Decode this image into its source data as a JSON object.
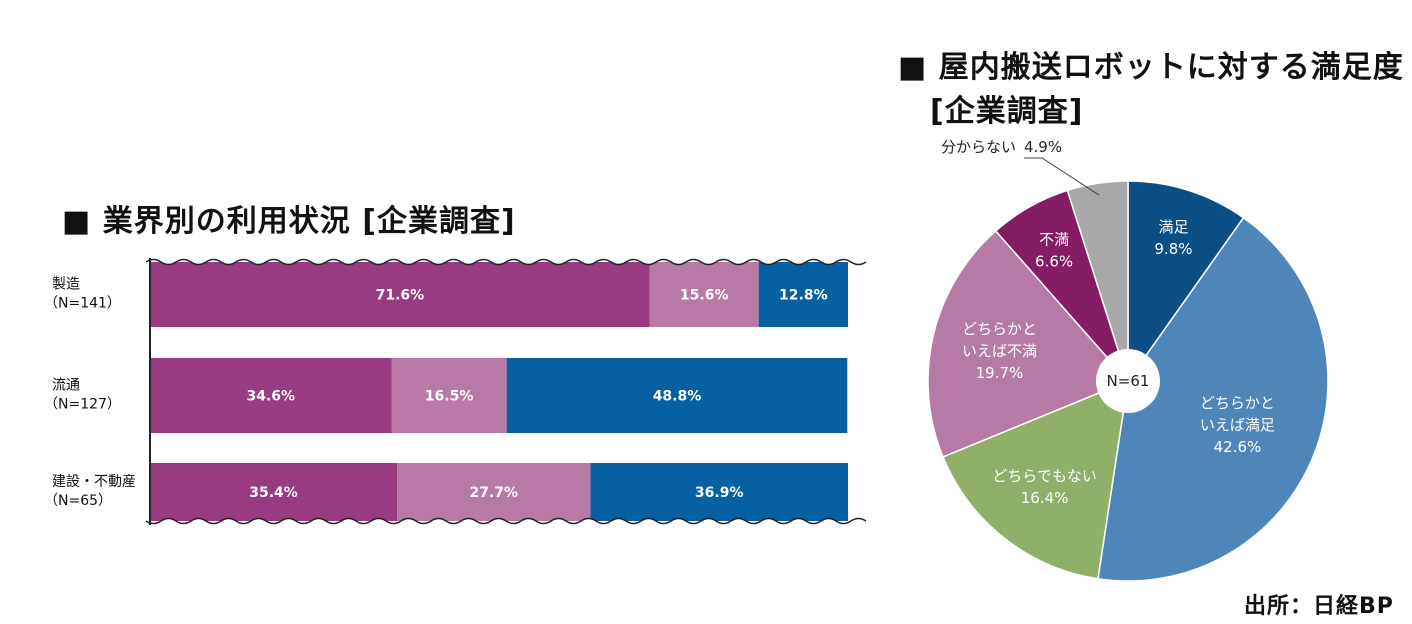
{
  "bar_chart": {
    "title": "■ 業界別の利用状況 [企業調査]"
  },
  "pie_chart": {
    "title_line1": "■ 屋内搬送ロボットに対する満足度",
    "title_line2": "[企業調査]",
    "center_label": "N=61"
  },
  "source": "出所：日経BP",
  "chart_data": [
    {
      "type": "bar",
      "orientation": "horizontal",
      "stacked": true,
      "normalized_percent": true,
      "title": "■ 業界別の利用状況 [企業調査]",
      "categories": [
        {
          "line1": "製造",
          "line2": "（N=141）"
        },
        {
          "line1": "流通",
          "line2": "（N=127）"
        },
        {
          "line1": "建設・不動産",
          "line2": "（N=65）"
        }
      ],
      "series": [
        {
          "values": [
            71.6,
            34.6,
            35.4
          ],
          "labels": [
            "71.6%",
            "34.6%",
            "35.4%"
          ],
          "color": "#993b80"
        },
        {
          "values": [
            15.6,
            16.5,
            27.7
          ],
          "labels": [
            "15.6%",
            "16.5%",
            "27.7%"
          ],
          "color": "#b87aa5"
        },
        {
          "values": [
            12.8,
            48.8,
            36.9
          ],
          "labels": [
            "12.8%",
            "48.8%",
            "36.9%"
          ],
          "color": "#0660a1"
        }
      ],
      "xlim": [
        0,
        100
      ],
      "axis_break": "wavy top and bottom edges",
      "legend": "none"
    },
    {
      "type": "pie",
      "style": "donut-center",
      "title": "■ 屋内搬送ロボットに対する満足度 [企業調査]",
      "center_label": "N=61",
      "start": "12 o'clock, clockwise",
      "slices": [
        {
          "label_lines": [
            "満足"
          ],
          "value": 9.8,
          "value_label": "9.8%",
          "color": "#0b4f86",
          "label_inside": true
        },
        {
          "label_lines": [
            "どちらかと",
            "いえば満足"
          ],
          "value": 42.6,
          "value_label": "42.6%",
          "color": "#4f86b9",
          "label_inside": true
        },
        {
          "label_lines": [
            "どちらでもない"
          ],
          "value": 16.4,
          "value_label": "16.4%",
          "color": "#8fb068",
          "label_inside": true
        },
        {
          "label_lines": [
            "どちらかと",
            "いえば不満"
          ],
          "value": 19.7,
          "value_label": "19.7%",
          "color": "#b67aa4",
          "label_inside": true
        },
        {
          "label_lines": [
            "不満"
          ],
          "value": 6.6,
          "value_label": "6.6%",
          "color": "#841d61",
          "label_inside": true
        },
        {
          "label_lines": [
            "分からない"
          ],
          "value": 4.9,
          "value_label": "4.9%",
          "color": "#a8a8ab",
          "label_inside": false
        }
      ]
    }
  ]
}
